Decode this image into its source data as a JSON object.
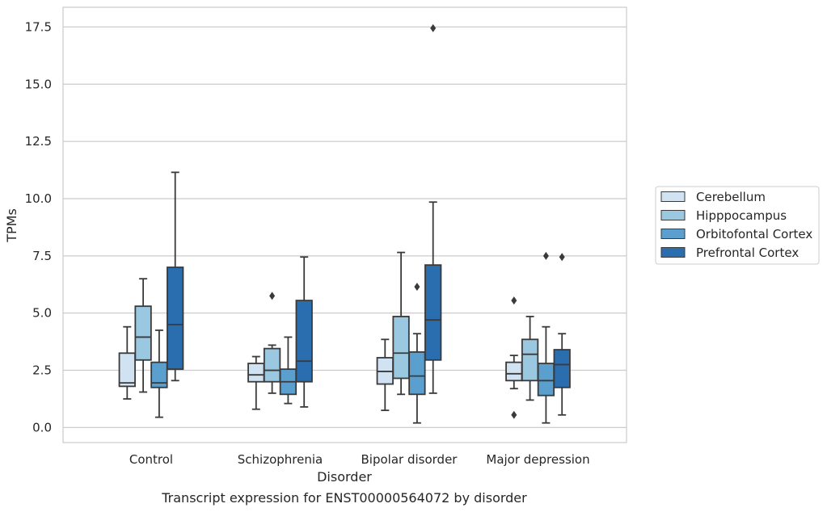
{
  "chart_data": {
    "type": "box",
    "title": "",
    "caption": "Transcript expression for ENST00000564072 by disorder",
    "xlabel": "Disorder",
    "ylabel": "TPMs",
    "ylim": [
      -0.6,
      18.3
    ],
    "yticks": [
      "0.0",
      "2.5",
      "5.0",
      "7.5",
      "10.0",
      "12.5",
      "15.0",
      "17.5"
    ],
    "grid": "horizontal",
    "legend_position": "right",
    "categories": [
      "Control",
      "Schizophrenia",
      "Bipolar disorder",
      "Major depression"
    ],
    "series": [
      {
        "name": "Cerebellum",
        "color": "#d1e2f2",
        "boxes": [
          {
            "whisker_low": 1.25,
            "q1": 1.8,
            "median": 1.95,
            "q3": 3.25,
            "whisker_high": 4.4,
            "outliers": []
          },
          {
            "whisker_low": 0.8,
            "q1": 2.0,
            "median": 2.3,
            "q3": 2.8,
            "whisker_high": 3.1,
            "outliers": []
          },
          {
            "whisker_low": 0.75,
            "q1": 1.9,
            "median": 2.45,
            "q3": 3.05,
            "whisker_high": 3.85,
            "outliers": []
          },
          {
            "whisker_low": 1.7,
            "q1": 2.05,
            "median": 2.35,
            "q3": 2.85,
            "whisker_high": 3.15,
            "outliers": [
              5.55,
              0.55
            ]
          }
        ]
      },
      {
        "name": "Hipppocampus",
        "color": "#9ac8e0",
        "boxes": [
          {
            "whisker_low": 1.55,
            "q1": 2.95,
            "median": 3.95,
            "q3": 5.3,
            "whisker_high": 6.5,
            "outliers": []
          },
          {
            "whisker_low": 1.5,
            "q1": 2.0,
            "median": 2.5,
            "q3": 3.45,
            "whisker_high": 3.6,
            "outliers": [
              5.75
            ]
          },
          {
            "whisker_low": 1.45,
            "q1": 2.15,
            "median": 3.25,
            "q3": 4.85,
            "whisker_high": 7.65,
            "outliers": []
          },
          {
            "whisker_low": 1.2,
            "q1": 2.05,
            "median": 3.2,
            "q3": 3.85,
            "whisker_high": 4.85,
            "outliers": []
          }
        ]
      },
      {
        "name": "Orbitofontal Cortex",
        "color": "#5a9fcd",
        "boxes": [
          {
            "whisker_low": 0.45,
            "q1": 1.75,
            "median": 1.95,
            "q3": 2.85,
            "whisker_high": 4.25,
            "outliers": []
          },
          {
            "whisker_low": 1.05,
            "q1": 1.45,
            "median": 2.0,
            "q3": 2.55,
            "whisker_high": 3.95,
            "outliers": []
          },
          {
            "whisker_low": 0.2,
            "q1": 1.45,
            "median": 2.25,
            "q3": 3.3,
            "whisker_high": 4.1,
            "outliers": [
              6.15
            ]
          },
          {
            "whisker_low": 0.2,
            "q1": 1.4,
            "median": 2.05,
            "q3": 2.8,
            "whisker_high": 4.4,
            "outliers": [
              7.5
            ]
          }
        ]
      },
      {
        "name": "Prefrontal Cortex",
        "color": "#2a6eb0",
        "boxes": [
          {
            "whisker_low": 2.05,
            "q1": 2.55,
            "median": 4.5,
            "q3": 7.0,
            "whisker_high": 11.15,
            "outliers": []
          },
          {
            "whisker_low": 0.9,
            "q1": 2.0,
            "median": 2.9,
            "q3": 5.55,
            "whisker_high": 7.45,
            "outliers": []
          },
          {
            "whisker_low": 1.5,
            "q1": 2.95,
            "median": 4.7,
            "q3": 7.1,
            "whisker_high": 9.85,
            "outliers": [
              17.45
            ]
          },
          {
            "whisker_low": 0.55,
            "q1": 1.75,
            "median": 2.75,
            "q3": 3.4,
            "whisker_high": 4.1,
            "outliers": [
              7.45
            ]
          }
        ]
      }
    ]
  }
}
